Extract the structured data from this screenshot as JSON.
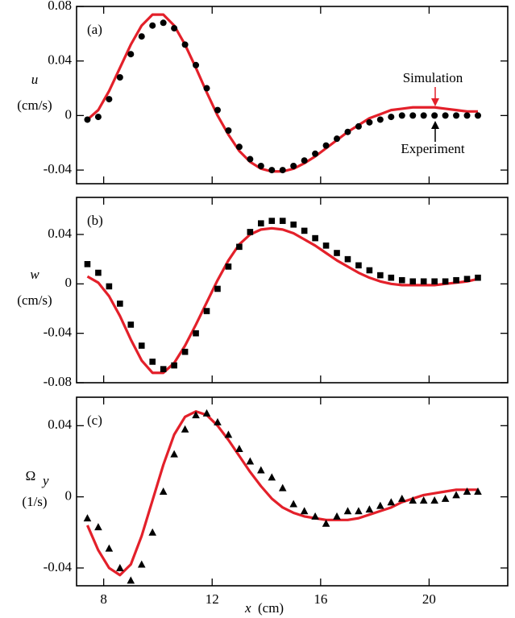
{
  "chart_data": [
    {
      "type": "line",
      "label": "(a)",
      "ylabel": {
        "symbol": "u",
        "unit": "(cm/s)"
      },
      "xlim": [
        7,
        22.9
      ],
      "xticks": [
        8,
        12,
        16,
        20
      ],
      "xtick_labels": false,
      "ylim": [
        -0.05,
        0.08
      ],
      "yticks": [
        -0.04,
        0,
        0.04,
        0.08
      ],
      "annotate_series": true,
      "x": [
        7.4,
        7.8,
        8.2,
        8.6,
        9.0,
        9.4,
        9.8,
        10.2,
        10.6,
        11.0,
        11.4,
        11.8,
        12.2,
        12.6,
        13.0,
        13.4,
        13.8,
        14.2,
        14.6,
        15.0,
        15.4,
        15.8,
        16.2,
        16.6,
        17.0,
        17.4,
        17.8,
        18.2,
        18.6,
        19.0,
        19.4,
        19.8,
        20.2,
        20.6,
        21.0,
        21.4,
        21.8
      ],
      "series": [
        {
          "name": "Simulation",
          "color": "#e3202a",
          "values": [
            -0.003,
            0.004,
            0.018,
            0.035,
            0.052,
            0.066,
            0.074,
            0.074,
            0.066,
            0.052,
            0.035,
            0.017,
            0.0,
            -0.014,
            -0.026,
            -0.034,
            -0.039,
            -0.041,
            -0.041,
            -0.039,
            -0.035,
            -0.03,
            -0.024,
            -0.018,
            -0.012,
            -0.007,
            -0.002,
            0.001,
            0.004,
            0.005,
            0.006,
            0.006,
            0.006,
            0.005,
            0.004,
            0.003,
            0.003
          ]
        },
        {
          "name": "Experiment",
          "color": "#000000",
          "marker": "circle",
          "values": [
            -0.003,
            -0.001,
            0.012,
            0.028,
            0.045,
            0.058,
            0.066,
            0.068,
            0.064,
            0.052,
            0.037,
            0.02,
            0.004,
            -0.011,
            -0.023,
            -0.032,
            -0.037,
            -0.04,
            -0.04,
            -0.037,
            -0.033,
            -0.028,
            -0.022,
            -0.017,
            -0.012,
            -0.008,
            -0.005,
            -0.003,
            -0.001,
            0.0,
            0.0,
            0.0,
            0.0,
            0.0,
            0.0,
            0.0,
            0.0
          ]
        }
      ]
    },
    {
      "type": "line",
      "label": "(b)",
      "ylabel": {
        "symbol": "w",
        "unit": "(cm/s)"
      },
      "xlim": [
        7,
        22.9
      ],
      "xticks": [
        8,
        12,
        16,
        20
      ],
      "xtick_labels": false,
      "ylim": [
        -0.08,
        0.07
      ],
      "yticks": [
        -0.08,
        -0.04,
        0,
        0.04
      ],
      "annotate_series": false,
      "x": [
        7.4,
        7.8,
        8.2,
        8.6,
        9.0,
        9.4,
        9.8,
        10.2,
        10.6,
        11.0,
        11.4,
        11.8,
        12.2,
        12.6,
        13.0,
        13.4,
        13.8,
        14.2,
        14.6,
        15.0,
        15.4,
        15.8,
        16.2,
        16.6,
        17.0,
        17.4,
        17.8,
        18.2,
        18.6,
        19.0,
        19.4,
        19.8,
        20.2,
        20.6,
        21.0,
        21.4,
        21.8
      ],
      "series": [
        {
          "name": "Simulation",
          "color": "#e3202a",
          "values": [
            0.006,
            0.001,
            -0.01,
            -0.026,
            -0.045,
            -0.062,
            -0.072,
            -0.072,
            -0.064,
            -0.05,
            -0.033,
            -0.015,
            0.003,
            0.019,
            0.032,
            0.04,
            0.044,
            0.045,
            0.044,
            0.041,
            0.036,
            0.031,
            0.025,
            0.019,
            0.014,
            0.009,
            0.005,
            0.002,
            0.0,
            -0.001,
            -0.001,
            -0.001,
            -0.001,
            0.0,
            0.001,
            0.002,
            0.004
          ]
        },
        {
          "name": "Experiment",
          "color": "#000000",
          "marker": "square",
          "values": [
            0.016,
            0.009,
            -0.002,
            -0.016,
            -0.033,
            -0.05,
            -0.063,
            -0.069,
            -0.066,
            -0.055,
            -0.04,
            -0.022,
            -0.004,
            0.014,
            0.03,
            0.042,
            0.049,
            0.051,
            0.051,
            0.048,
            0.043,
            0.037,
            0.031,
            0.025,
            0.02,
            0.015,
            0.011,
            0.007,
            0.005,
            0.003,
            0.002,
            0.002,
            0.002,
            0.002,
            0.003,
            0.004,
            0.005
          ]
        }
      ]
    },
    {
      "type": "line",
      "label": "(c)",
      "ylabel": {
        "symbol": "Ω",
        "subscript": "y",
        "unit": "(1/s)"
      },
      "xlabel": {
        "symbol": "x",
        "unit": "(cm)"
      },
      "xlim": [
        7,
        22.9
      ],
      "xticks": [
        8,
        12,
        16,
        20
      ],
      "xtick_labels": true,
      "ylim": [
        -0.05,
        0.056
      ],
      "yticks": [
        -0.04,
        0,
        0.04
      ],
      "annotate_series": false,
      "x": [
        7.4,
        7.8,
        8.2,
        8.6,
        9.0,
        9.4,
        9.8,
        10.2,
        10.6,
        11.0,
        11.4,
        11.8,
        12.2,
        12.6,
        13.0,
        13.4,
        13.8,
        14.2,
        14.6,
        15.0,
        15.4,
        15.8,
        16.2,
        16.6,
        17.0,
        17.4,
        17.8,
        18.2,
        18.6,
        19.0,
        19.4,
        19.8,
        20.2,
        20.6,
        21.0,
        21.4,
        21.8
      ],
      "series": [
        {
          "name": "Simulation",
          "color": "#e3202a",
          "values": [
            -0.016,
            -0.03,
            -0.04,
            -0.044,
            -0.038,
            -0.022,
            -0.002,
            0.018,
            0.035,
            0.045,
            0.048,
            0.046,
            0.04,
            0.032,
            0.023,
            0.014,
            0.006,
            -0.001,
            -0.006,
            -0.009,
            -0.011,
            -0.012,
            -0.013,
            -0.013,
            -0.013,
            -0.012,
            -0.01,
            -0.008,
            -0.006,
            -0.003,
            -0.001,
            0.001,
            0.002,
            0.003,
            0.004,
            0.004,
            0.004
          ]
        },
        {
          "name": "Experiment",
          "color": "#000000",
          "marker": "triangle",
          "values": [
            -0.012,
            -0.017,
            -0.029,
            -0.04,
            -0.047,
            -0.038,
            -0.02,
            0.003,
            0.024,
            0.038,
            0.046,
            0.047,
            0.042,
            0.035,
            0.027,
            0.02,
            0.015,
            0.011,
            0.005,
            -0.004,
            -0.008,
            -0.011,
            -0.015,
            -0.011,
            -0.008,
            -0.008,
            -0.007,
            -0.005,
            -0.003,
            -0.001,
            -0.002,
            -0.002,
            -0.002,
            -0.001,
            0.001,
            0.003,
            0.003
          ]
        }
      ]
    }
  ]
}
